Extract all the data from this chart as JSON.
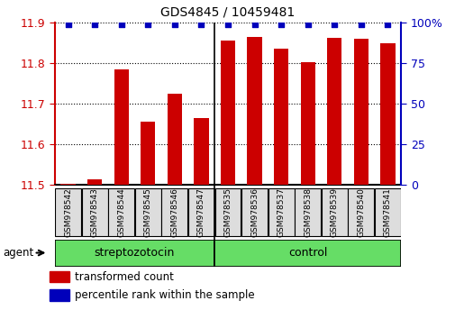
{
  "title": "GDS4845 / 10459481",
  "samples": [
    "GSM978542",
    "GSM978543",
    "GSM978544",
    "GSM978545",
    "GSM978546",
    "GSM978547",
    "GSM978535",
    "GSM978536",
    "GSM978537",
    "GSM978538",
    "GSM978539",
    "GSM978540",
    "GSM978541"
  ],
  "red_values": [
    11.502,
    11.515,
    11.785,
    11.655,
    11.725,
    11.665,
    11.855,
    11.865,
    11.835,
    11.803,
    11.862,
    11.86,
    11.848
  ],
  "blue_values": [
    99,
    99,
    99,
    99,
    99,
    99,
    99,
    99,
    99,
    99,
    99,
    99,
    99
  ],
  "ylim_left": [
    11.5,
    11.9
  ],
  "ylim_right": [
    0,
    100
  ],
  "yticks_left": [
    11.5,
    11.6,
    11.7,
    11.8,
    11.9
  ],
  "yticks_right": [
    0,
    25,
    50,
    75,
    100
  ],
  "ytick_labels_right": [
    "0",
    "25",
    "50",
    "75",
    "100%"
  ],
  "groups": [
    {
      "name": "streptozotocin",
      "indices": [
        0,
        1,
        2,
        3,
        4,
        5
      ],
      "color": "#66DD66"
    },
    {
      "name": "control",
      "indices": [
        6,
        7,
        8,
        9,
        10,
        11,
        12
      ],
      "color": "#66DD66"
    }
  ],
  "bar_color": "#CC0000",
  "dot_color": "#0000BB",
  "bar_width": 0.55,
  "legend_red": "transformed count",
  "legend_blue": "percentile rank within the sample",
  "agent_label": "agent",
  "tick_color_left": "#CC0000",
  "tick_color_right": "#0000BB",
  "separator_index": 6,
  "sample_box_color": "#DDDDDD",
  "n_strep": 6,
  "n_control": 7
}
